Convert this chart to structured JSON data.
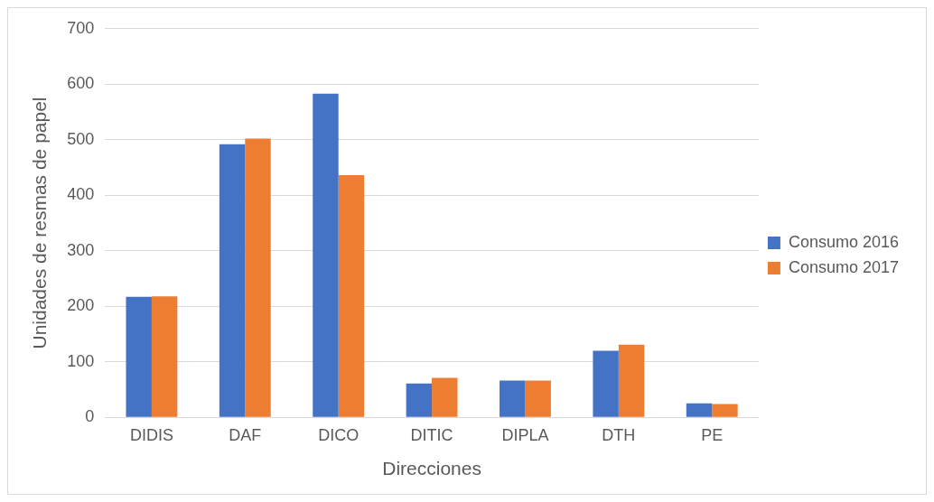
{
  "chart_data": {
    "type": "bar",
    "xlabel": "Direcciones",
    "ylabel": "Unidades de resmas de papel",
    "categories": [
      "DIDIS",
      "DAF",
      "DICO",
      "DITIC",
      "DIPLA",
      "DTH",
      "PE"
    ],
    "series": [
      {
        "name": "Consumo 2016",
        "color": "#4472c4",
        "values": [
          217,
          492,
          583,
          61,
          66,
          120,
          25
        ]
      },
      {
        "name": "Consumo 2017",
        "color": "#ed7d31",
        "values": [
          218,
          502,
          436,
          71,
          66,
          131,
          24
        ]
      }
    ],
    "ylim": [
      0,
      700
    ],
    "yticks": [
      0,
      100,
      200,
      300,
      400,
      500,
      600,
      700
    ],
    "grid": "y",
    "legend": "right"
  }
}
